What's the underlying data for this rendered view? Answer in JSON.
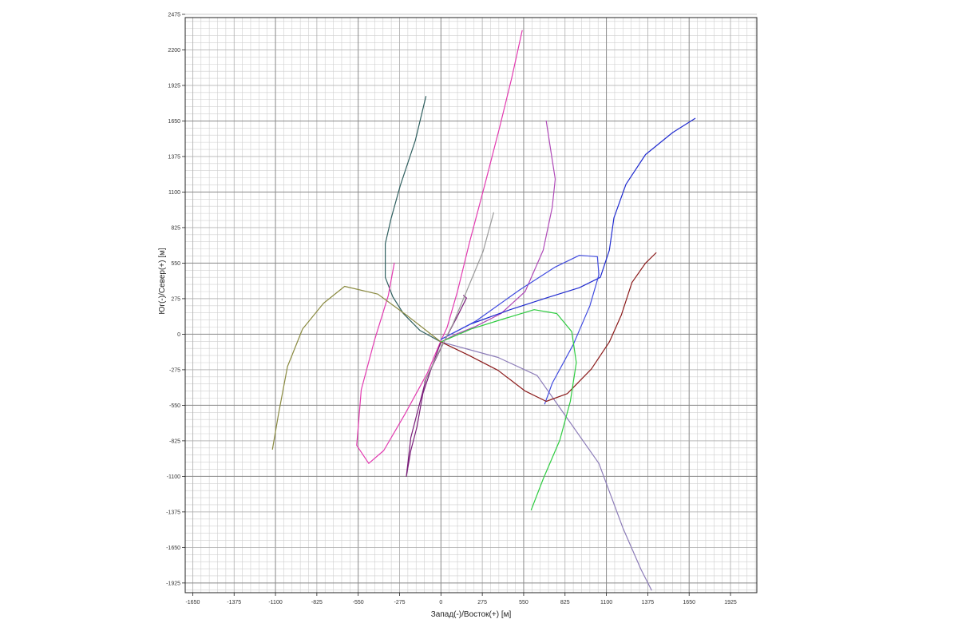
{
  "chart_data": {
    "type": "line",
    "title": "",
    "xlabel": "Запад(-)/Восток(+) [м]",
    "ylabel": "Юг(-)/Север(+) [м]",
    "xlim": [
      -1700,
      2100
    ],
    "ylim": [
      -2000,
      2450
    ],
    "xticks": [
      -1650,
      -1375,
      -1100,
      -825,
      -550,
      -275,
      0,
      275,
      550,
      825,
      1100,
      1375,
      1650,
      1925
    ],
    "xtick_labels": [
      "-1650",
      "-1375",
      "-1100",
      "-825",
      "-550",
      "-275",
      "0",
      "275",
      "550",
      "825",
      "1100",
      "1375",
      "1650",
      "1925"
    ],
    "yticks": [
      2475,
      2200,
      1925,
      1650,
      1375,
      1100,
      825,
      550,
      275,
      0,
      -275,
      -550,
      -825,
      -1100,
      -1375,
      -1650,
      -1925
    ],
    "ytick_labels": [
      "2475",
      "2200",
      "1925",
      "1650",
      "1375",
      "1100",
      "825",
      "550",
      "275",
      "0",
      "-275",
      "-550",
      "-825",
      "-1100",
      "-1375",
      "-1650",
      "-1925"
    ],
    "grid": true,
    "legend": "none",
    "series": [
      {
        "color": "#2f5f5f",
        "points": [
          [
            -100,
            1840
          ],
          [
            -170,
            1500
          ],
          [
            -270,
            1150
          ],
          [
            -330,
            900
          ],
          [
            -370,
            700
          ],
          [
            -370,
            440
          ],
          [
            -320,
            290
          ],
          [
            -250,
            160
          ],
          [
            -140,
            30
          ],
          [
            0,
            -60
          ]
        ]
      },
      {
        "color": "#e23ab0",
        "points": [
          [
            540,
            2350
          ],
          [
            470,
            1980
          ],
          [
            390,
            1600
          ],
          [
            290,
            1150
          ],
          [
            190,
            710
          ],
          [
            110,
            330
          ],
          [
            40,
            50
          ],
          [
            0,
            -50
          ],
          [
            -90,
            -300
          ],
          [
            -240,
            -620
          ],
          [
            -380,
            -900
          ],
          [
            -480,
            -1000
          ],
          [
            -560,
            -860
          ],
          [
            -530,
            -430
          ],
          [
            -440,
            -40
          ],
          [
            -350,
            300
          ],
          [
            -310,
            550
          ]
        ]
      },
      {
        "color": "#b04ab8",
        "points": [
          [
            700,
            1650
          ],
          [
            740,
            1350
          ],
          [
            760,
            1200
          ],
          [
            740,
            980
          ],
          [
            680,
            650
          ],
          [
            560,
            330
          ],
          [
            400,
            160
          ],
          [
            230,
            60
          ],
          [
            100,
            0
          ],
          [
            0,
            -60
          ]
        ]
      },
      {
        "color": "#8c7cb8",
        "points": [
          [
            1400,
            -1980
          ],
          [
            1330,
            -1820
          ],
          [
            1210,
            -1500
          ],
          [
            1050,
            -1000
          ],
          [
            640,
            -320
          ],
          [
            380,
            -180
          ],
          [
            0,
            -60
          ]
        ]
      },
      {
        "color": "#7a1f7a",
        "points": [
          [
            0,
            -60
          ],
          [
            -60,
            -250
          ],
          [
            -120,
            -460
          ],
          [
            -160,
            -720
          ],
          [
            -200,
            -900
          ],
          [
            -230,
            -1100
          ],
          [
            -200,
            -800
          ],
          [
            -100,
            -350
          ],
          [
            20,
            -60
          ],
          [
            110,
            140
          ],
          [
            170,
            280
          ],
          [
            150,
            300
          ]
        ]
      },
      {
        "color": "#1f2acf",
        "points": [
          [
            0,
            -40
          ],
          [
            200,
            80
          ],
          [
            460,
            190
          ],
          [
            700,
            280
          ],
          [
            920,
            360
          ],
          [
            1060,
            440
          ],
          [
            1120,
            650
          ],
          [
            1150,
            900
          ],
          [
            1230,
            1160
          ],
          [
            1360,
            1390
          ],
          [
            1540,
            1560
          ],
          [
            1690,
            1670
          ]
        ]
      },
      {
        "color": "#3f4adf",
        "points": [
          [
            0,
            -40
          ],
          [
            230,
            100
          ],
          [
            520,
            340
          ],
          [
            760,
            520
          ],
          [
            920,
            610
          ],
          [
            1040,
            600
          ],
          [
            1050,
            460
          ],
          [
            990,
            220
          ],
          [
            880,
            -80
          ],
          [
            740,
            -380
          ],
          [
            690,
            -540
          ]
        ]
      },
      {
        "color": "#8b1a1a",
        "points": [
          [
            0,
            -60
          ],
          [
            180,
            -160
          ],
          [
            380,
            -280
          ],
          [
            560,
            -440
          ],
          [
            700,
            -520
          ],
          [
            840,
            -460
          ],
          [
            1000,
            -270
          ],
          [
            1120,
            -60
          ],
          [
            1200,
            150
          ],
          [
            1270,
            400
          ],
          [
            1360,
            550
          ],
          [
            1430,
            630
          ]
        ]
      },
      {
        "color": "#2ecc40",
        "points": [
          [
            0,
            -60
          ],
          [
            200,
            40
          ],
          [
            420,
            120
          ],
          [
            620,
            190
          ],
          [
            770,
            160
          ],
          [
            870,
            20
          ],
          [
            900,
            -220
          ],
          [
            860,
            -520
          ],
          [
            790,
            -820
          ],
          [
            680,
            -1120
          ],
          [
            600,
            -1360
          ]
        ]
      },
      {
        "color": "#8a8a40",
        "points": [
          [
            0,
            -60
          ],
          [
            -220,
            140
          ],
          [
            -420,
            310
          ],
          [
            -640,
            370
          ],
          [
            -780,
            240
          ],
          [
            -920,
            40
          ],
          [
            -1020,
            -250
          ],
          [
            -1080,
            -620
          ],
          [
            -1120,
            -890
          ]
        ]
      },
      {
        "color": "#9a9a9a",
        "points": [
          [
            -110,
            -370
          ],
          [
            -20,
            -150
          ],
          [
            80,
            80
          ],
          [
            170,
            330
          ],
          [
            280,
            640
          ],
          [
            350,
            940
          ]
        ]
      }
    ]
  }
}
